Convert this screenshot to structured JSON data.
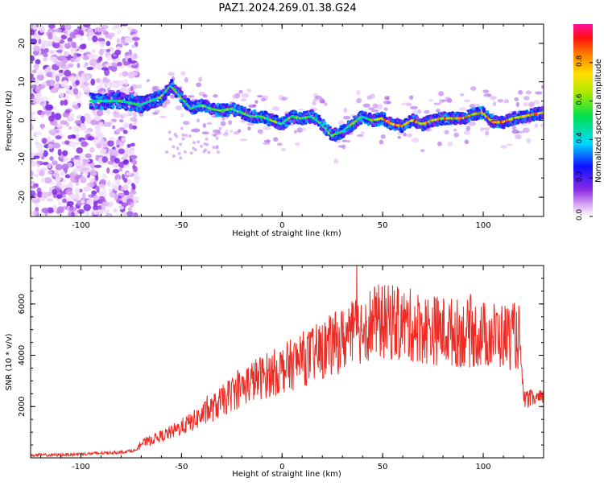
{
  "figure_title": "PAZ1.2024.269.01.38.G24",
  "colors": {
    "snr_line": "#ee2a22",
    "axis": "#000000",
    "background": "#ffffff"
  },
  "chart_data": [
    {
      "type": "heatmap",
      "title": "PAZ1.2024.269.01.38.G24",
      "xlabel": "Height of straight line (km)",
      "ylabel": "Frequency (Hz)",
      "xlim": [
        -125,
        130
      ],
      "ylim": [
        -25,
        25
      ],
      "x_ticks": [
        -100,
        -50,
        0,
        50,
        100
      ],
      "y_ticks": [
        -20,
        -10,
        0,
        10,
        20
      ],
      "ridge": {
        "x": [
          -90,
          -80,
          -70,
          -60,
          -55,
          -50,
          -45,
          -40,
          -35,
          -30,
          -25,
          -20,
          -15,
          -10,
          -5,
          0,
          5,
          10,
          15,
          20,
          25,
          30,
          35,
          40,
          45,
          50,
          55,
          60,
          65,
          70,
          75,
          80,
          85,
          90,
          95,
          100,
          105,
          110,
          115,
          120,
          125,
          130
        ],
        "frequency": [
          5,
          5,
          4,
          6,
          9,
          6,
          3,
          4,
          3,
          2.5,
          3,
          2,
          1,
          1,
          0,
          -1,
          1,
          0.5,
          1,
          -1,
          -4,
          -3,
          -1,
          1,
          0,
          0.5,
          -1,
          -1.5,
          0,
          -1,
          0,
          0.5,
          0.5,
          0.5,
          1.5,
          2,
          -0.5,
          -0.5,
          0.5,
          1,
          1.5,
          2
        ]
      },
      "colorbar": {
        "label": "Normalized spectral amplitude",
        "range": [
          0,
          1
        ],
        "ticks": [
          "0.0",
          "0.2",
          "0.4",
          "0.6",
          "0.8"
        ],
        "tick_values": [
          0.0,
          0.2,
          0.4,
          0.6,
          0.8
        ]
      },
      "grid": false
    },
    {
      "type": "line",
      "xlabel": "Height of straight line (km)",
      "ylabel": "SNR (10 * v/v)",
      "xlim": [
        -125,
        130
      ],
      "ylim": [
        0,
        7500
      ],
      "x_ticks": [
        -100,
        -50,
        0,
        50,
        100
      ],
      "y_ticks": [
        2000,
        4000,
        6000
      ],
      "series": [
        {
          "x": [
            -125,
            -110,
            -100,
            -90,
            -80,
            -72,
            -70,
            -65,
            -60,
            -55,
            -50,
            -45,
            -40,
            -35,
            -30,
            -25,
            -20,
            -15,
            -10,
            -5,
            0,
            5,
            10,
            15,
            20,
            25,
            30,
            35,
            40,
            45,
            50,
            55,
            60,
            65,
            70,
            75,
            80,
            85,
            90,
            95,
            100,
            105,
            110,
            115,
            118,
            120,
            125,
            130
          ],
          "y": [
            100,
            120,
            150,
            180,
            220,
            300,
            550,
            700,
            850,
            1000,
            1200,
            1400,
            1650,
            1900,
            2200,
            2500,
            2750,
            3000,
            3150,
            3300,
            3450,
            3650,
            3850,
            4000,
            4200,
            4400,
            4600,
            4800,
            5100,
            5300,
            5300,
            5250,
            5200,
            5150,
            5050,
            5000,
            4950,
            4900,
            4850,
            4850,
            4800,
            4800,
            4750,
            4750,
            4700,
            2300,
            2300,
            2300
          ]
        }
      ],
      "grid": false
    }
  ]
}
